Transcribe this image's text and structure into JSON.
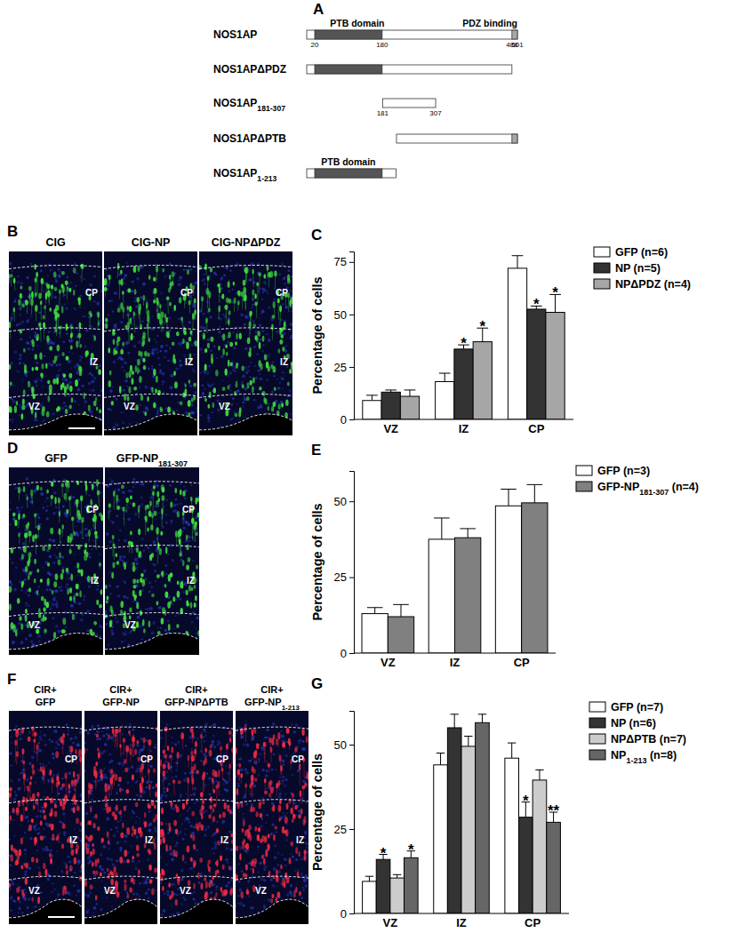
{
  "diagram": {
    "title": "A",
    "constructs": [
      {
        "name": "NOS1AP",
        "start": 1,
        "end": 501,
        "ptb": [
          20,
          180
        ],
        "pdz": [
          488,
          501
        ],
        "numbers": [
          20,
          180,
          488,
          501
        ],
        "ptb_label": "PTB domain",
        "pdz_label": "PDZ binding"
      },
      {
        "name": "NOS1APΔPDZ",
        "start": 1,
        "end": 488,
        "ptb": [
          20,
          180
        ]
      },
      {
        "name": "NOS1AP181-307",
        "start": 181,
        "end": 307,
        "numbers": [
          181,
          307
        ]
      },
      {
        "name": "NOS1APΔPTB",
        "start": 214,
        "end": 501,
        "pdz": [
          488,
          501
        ]
      },
      {
        "name": "NOS1AP1-213",
        "start": 1,
        "end": 213,
        "ptb": [
          20,
          180
        ],
        "ptb_label": "PTB domain"
      }
    ]
  },
  "images": [
    {
      "title": "B",
      "color": "#3fdc3f",
      "labels": [
        [
          "CIG"
        ],
        [
          "CIG-NP"
        ],
        [
          "CIG-NPΔPDZ"
        ]
      ],
      "zones": [
        "CP",
        "IZ",
        "VZ"
      ]
    },
    {
      "title": "D",
      "color": "#3fdc3f",
      "labels": [
        [
          "GFP"
        ],
        [
          "GFP-NP181-307"
        ]
      ],
      "zones": [
        "CP",
        "IZ",
        "VZ"
      ]
    },
    {
      "title": "F",
      "color": "#ec2a42",
      "labels": [
        [
          "CIR+",
          "GFP"
        ],
        [
          "CIR+",
          "GFP-NP"
        ],
        [
          "CIR+",
          "GFP-NPΔPTB"
        ],
        [
          "CIR+",
          "GFP-NP1-213"
        ]
      ],
      "zones": [
        "CP",
        "IZ",
        "VZ"
      ]
    }
  ],
  "chart_data": [
    {
      "type": "bar",
      "title": "C",
      "ylabel": "Percentage of cells",
      "categories": [
        "VZ",
        "IZ",
        "CP"
      ],
      "series": [
        {
          "name": "GFP (n=6)",
          "color": "#ffffff",
          "values": [
            9,
            18,
            72
          ],
          "errors": [
            2.5,
            4,
            6
          ]
        },
        {
          "name": "NP (n=5)",
          "color": "#333333",
          "values": [
            13,
            33.5,
            52.5
          ],
          "errors": [
            1,
            2,
            1.5
          ],
          "annotations": [
            null,
            "*",
            "*"
          ]
        },
        {
          "name": "NPΔPDZ (n=4)",
          "color": "#a6a6a6",
          "values": [
            11,
            37,
            51
          ],
          "errors": [
            3,
            6.5,
            8.5
          ],
          "annotations": [
            null,
            "*",
            "*"
          ]
        }
      ],
      "ylim": [
        0,
        80
      ],
      "yticks": [
        0,
        25,
        50,
        75
      ],
      "legend": "upper right"
    },
    {
      "type": "bar",
      "title": "E",
      "ylabel": "Percentage of cells",
      "categories": [
        "VZ",
        "IZ",
        "CP"
      ],
      "series": [
        {
          "name": "GFP (n=3)",
          "color": "#ffffff",
          "values": [
            13,
            37.5,
            48.5
          ],
          "errors": [
            2,
            7,
            5.5
          ]
        },
        {
          "name": "GFP-NP181-307 (n=4)",
          "color": "#808080",
          "values": [
            12,
            38,
            49.5
          ],
          "errors": [
            4,
            3,
            6
          ]
        }
      ],
      "ylim": [
        0,
        60
      ],
      "yticks": [
        0,
        25,
        50
      ],
      "legend": "upper right"
    },
    {
      "type": "bar",
      "title": "G",
      "ylabel": "Percentage of cells",
      "categories": [
        "VZ",
        "IZ",
        "CP"
      ],
      "series": [
        {
          "name": "GFP (n=7)",
          "color": "#ffffff",
          "values": [
            9.5,
            44,
            46
          ],
          "errors": [
            1.5,
            3.5,
            4.5
          ]
        },
        {
          "name": "NP (n=6)",
          "color": "#333333",
          "values": [
            16,
            55,
            28.5
          ],
          "errors": [
            1.5,
            4,
            4.5
          ],
          "annotations": [
            "*",
            null,
            "*"
          ]
        },
        {
          "name": "NPΔPTB (n=7)",
          "color": "#cccccc",
          "values": [
            10.5,
            49.5,
            39.5
          ],
          "errors": [
            1,
            3,
            3
          ]
        },
        {
          "name": "NP1-213 (n=8)",
          "color": "#666666",
          "values": [
            16.5,
            56.5,
            27
          ],
          "errors": [
            2,
            2.5,
            3
          ],
          "annotations": [
            "*",
            null,
            "**"
          ]
        }
      ],
      "ylim": [
        0,
        60
      ],
      "yticks": [
        0,
        25,
        50
      ],
      "legend": "upper right"
    }
  ]
}
